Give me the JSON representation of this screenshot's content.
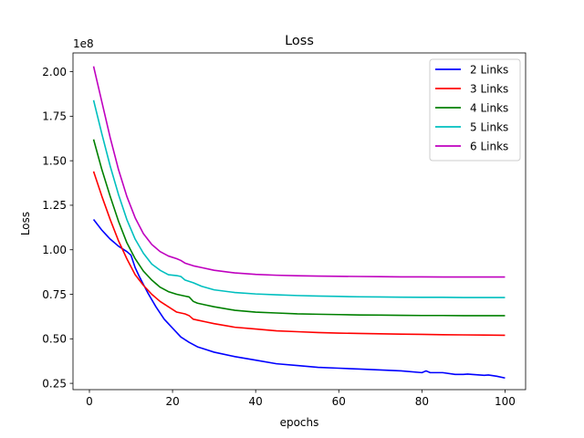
{
  "chart_data": {
    "type": "line",
    "title": "Loss",
    "xlabel": "epochs",
    "ylabel": "Loss",
    "y_offset_text": "1e8",
    "xlim": [
      -3.95,
      104.95
    ],
    "ylim": [
      0.2146,
      2.1054
    ],
    "x_ticks": [
      0,
      20,
      40,
      60,
      80,
      100
    ],
    "x_tick_labels": [
      "0",
      "20",
      "40",
      "60",
      "80",
      "100"
    ],
    "y_ticks": [
      0.25,
      0.5,
      0.75,
      1.0,
      1.25,
      1.5,
      1.75,
      2.0
    ],
    "y_tick_labels": [
      "0.25",
      "0.50",
      "0.75",
      "1.00",
      "1.25",
      "1.50",
      "1.75",
      "2.00"
    ],
    "grid": false,
    "legend_position": "top-right",
    "series": [
      {
        "name": "2 Links",
        "color": "#0000ff",
        "x": [
          1,
          3,
          5,
          7,
          9,
          10,
          11,
          12,
          14,
          16,
          18,
          20,
          22,
          24,
          26,
          28,
          30,
          35,
          40,
          45,
          50,
          55,
          60,
          65,
          70,
          75,
          80,
          81,
          82,
          85,
          88,
          90,
          91,
          92,
          95,
          96,
          98,
          100
        ],
        "y": [
          1.17,
          1.11,
          1.06,
          1.02,
          0.99,
          0.97,
          0.9,
          0.85,
          0.76,
          0.68,
          0.61,
          0.56,
          0.51,
          0.48,
          0.455,
          0.44,
          0.425,
          0.4,
          0.38,
          0.36,
          0.35,
          0.34,
          0.335,
          0.33,
          0.325,
          0.32,
          0.31,
          0.32,
          0.31,
          0.31,
          0.3,
          0.3,
          0.302,
          0.3,
          0.295,
          0.297,
          0.29,
          0.28
        ]
      },
      {
        "name": "3 Links",
        "color": "#ff0000",
        "x": [
          1,
          3,
          5,
          7,
          9,
          11,
          13,
          15,
          17,
          19,
          21,
          23,
          24,
          25,
          26,
          28,
          30,
          35,
          40,
          45,
          50,
          55,
          60,
          65,
          70,
          75,
          80,
          85,
          90,
          95,
          100
        ],
        "y": [
          1.44,
          1.3,
          1.17,
          1.05,
          0.95,
          0.86,
          0.8,
          0.75,
          0.71,
          0.68,
          0.65,
          0.64,
          0.63,
          0.61,
          0.605,
          0.595,
          0.585,
          0.565,
          0.555,
          0.545,
          0.54,
          0.535,
          0.532,
          0.53,
          0.528,
          0.526,
          0.525,
          0.523,
          0.522,
          0.521,
          0.52
        ]
      },
      {
        "name": "4 Links",
        "color": "#008000",
        "x": [
          1,
          3,
          5,
          7,
          9,
          11,
          13,
          15,
          17,
          19,
          21,
          23,
          24,
          25,
          26,
          28,
          30,
          35,
          40,
          45,
          50,
          55,
          60,
          65,
          70,
          75,
          80,
          85,
          90,
          95,
          100
        ],
        "y": [
          1.62,
          1.45,
          1.3,
          1.16,
          1.04,
          0.95,
          0.88,
          0.83,
          0.79,
          0.765,
          0.75,
          0.74,
          0.735,
          0.71,
          0.7,
          0.69,
          0.68,
          0.66,
          0.65,
          0.645,
          0.64,
          0.638,
          0.636,
          0.634,
          0.633,
          0.632,
          0.631,
          0.631,
          0.63,
          0.63,
          0.63
        ]
      },
      {
        "name": "5 Links",
        "color": "#00bfbf",
        "x": [
          1,
          3,
          5,
          7,
          9,
          11,
          13,
          15,
          17,
          19,
          21,
          22,
          23,
          25,
          27,
          30,
          35,
          40,
          45,
          50,
          55,
          60,
          65,
          70,
          75,
          80,
          85,
          90,
          95,
          100
        ],
        "y": [
          1.84,
          1.65,
          1.47,
          1.31,
          1.17,
          1.06,
          0.98,
          0.92,
          0.885,
          0.86,
          0.855,
          0.85,
          0.83,
          0.815,
          0.795,
          0.775,
          0.76,
          0.752,
          0.747,
          0.743,
          0.74,
          0.738,
          0.736,
          0.735,
          0.734,
          0.733,
          0.733,
          0.732,
          0.732,
          0.732
        ]
      },
      {
        "name": "6 Links",
        "color": "#bf00bf",
        "x": [
          1,
          3,
          5,
          7,
          9,
          11,
          13,
          15,
          17,
          19,
          21,
          22,
          23,
          25,
          27,
          30,
          35,
          40,
          45,
          50,
          55,
          60,
          65,
          70,
          75,
          80,
          85,
          90,
          95,
          100
        ],
        "y": [
          2.03,
          1.83,
          1.63,
          1.45,
          1.3,
          1.18,
          1.09,
          1.03,
          0.99,
          0.965,
          0.95,
          0.94,
          0.925,
          0.91,
          0.9,
          0.885,
          0.87,
          0.862,
          0.857,
          0.854,
          0.852,
          0.851,
          0.85,
          0.849,
          0.848,
          0.848,
          0.847,
          0.847,
          0.847,
          0.847
        ]
      }
    ]
  }
}
